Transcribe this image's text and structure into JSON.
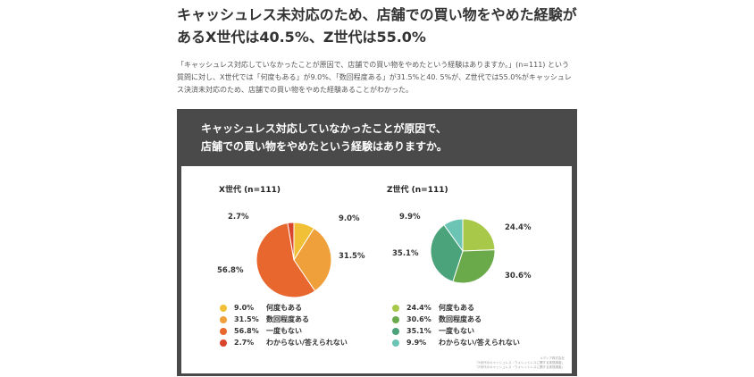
{
  "article": {
    "headline_line1": "キャッシュレス未対応のため、店舗での買い物をやめた経験が",
    "headline_line2": "あるX世代は40.5%、Z世代は55.0%",
    "intro_line1": "「キャッシュレス対応していなかったことが原因で、店舗での買い物をやめたという経験はありますか。」(n=111) という質問に対し、X世代では「何度もある」が9.0%、「数回程度ある」が31.5%と40.",
    "intro_line2": "5%が、Z世代では55.0%がキャッシュレス決済未対応のため、店舗での買い物をやめた経験あることがわかった。"
  },
  "panel": {
    "title_line1": "キャッシュレス対応していなかったことが原因で、",
    "title_line2": "店舗での買い物をやめたという経験はありますか。"
  },
  "source": {
    "line1": "メディア株式会社",
    "line2": "「X世代のキャッシュレス・ウォレットレスに関する実態調査」",
    "line3": "「Z世代のキャッシュレス・ウォレットレスに関する実態調査」"
  },
  "chart_data": [
    {
      "type": "pie",
      "title": "X世代 (n=111)",
      "categories": [
        "何度もある",
        "数回程度ある",
        "一度もない",
        "わからない/答えられない"
      ],
      "values": [
        9.0,
        31.5,
        56.8,
        2.7
      ],
      "labels": [
        "9.0%",
        "31.5%",
        "56.8%",
        "2.7%"
      ],
      "colors": [
        "#f2c037",
        "#f0a03a",
        "#e8672e",
        "#d9442a"
      ]
    },
    {
      "type": "pie",
      "title": "Z世代 (n=111)",
      "categories": [
        "何度もある",
        "数回程度ある",
        "一度もない",
        "わからない/答えられない"
      ],
      "values": [
        24.4,
        30.6,
        35.1,
        9.9
      ],
      "labels": [
        "24.4%",
        "30.6%",
        "35.1%",
        "9.9%"
      ],
      "colors": [
        "#a8c84a",
        "#6aaa4a",
        "#4aa37a",
        "#6cc4b4"
      ]
    }
  ]
}
